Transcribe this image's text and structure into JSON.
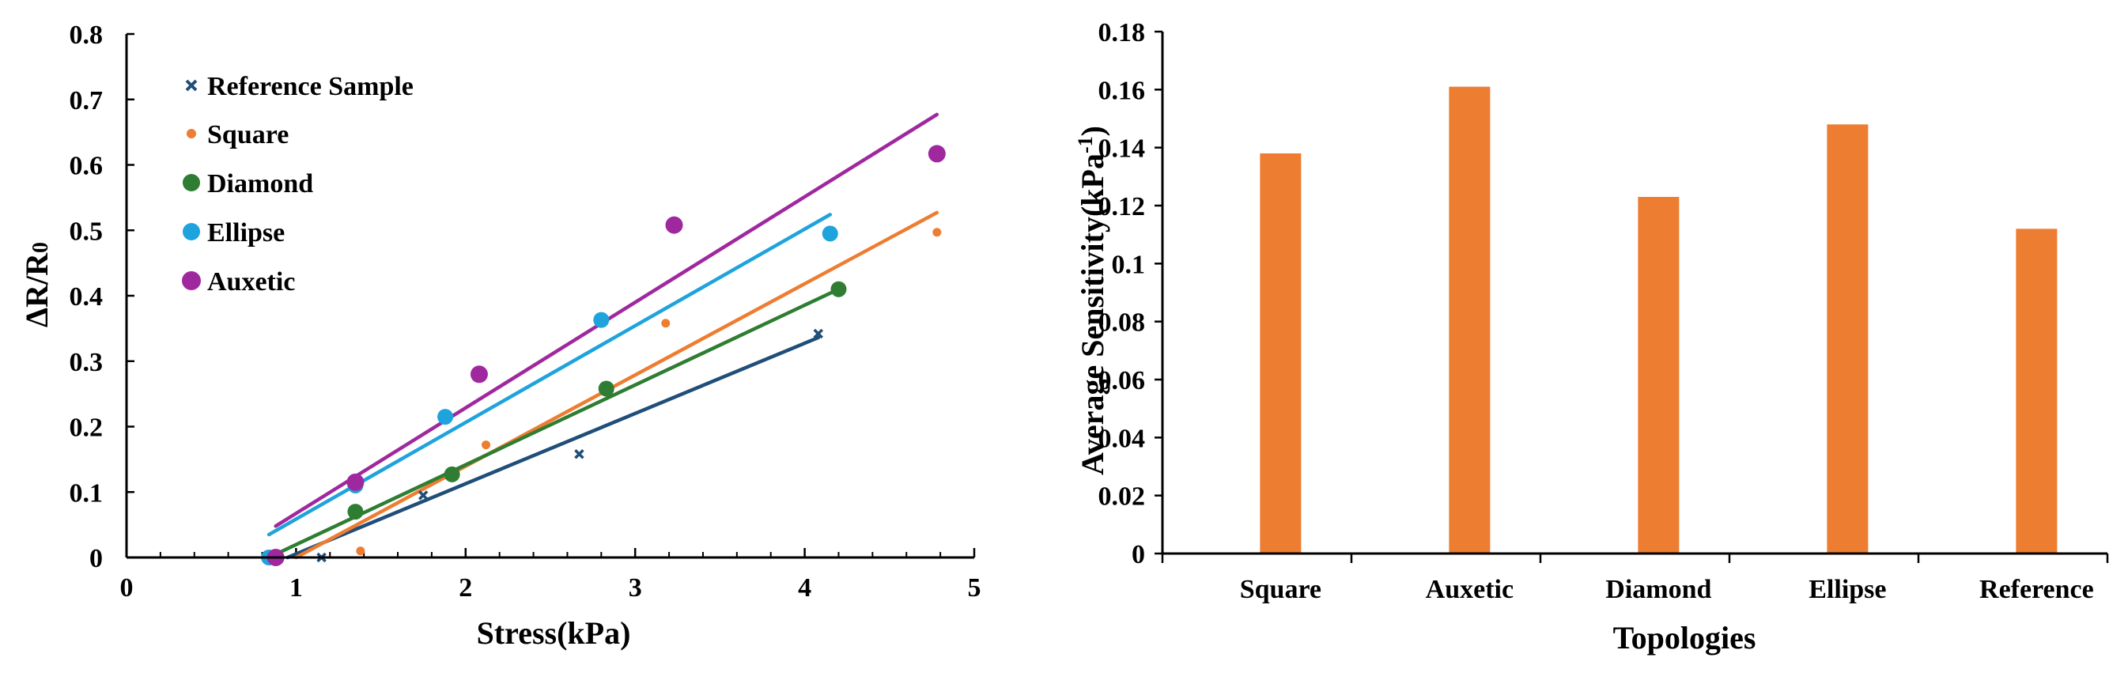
{
  "chart_data": [
    {
      "type": "scatter",
      "xlabel": "Stress(kPa)",
      "ylabel": "ΔR/R",
      "ylabel_subscript": "0",
      "xlim": [
        0,
        5
      ],
      "ylim": [
        0,
        0.8
      ],
      "xticks": [
        "0",
        "1",
        "2",
        "3",
        "4",
        "5"
      ],
      "yticks": [
        "0",
        "0.1",
        "0.2",
        "0.3",
        "0.4",
        "0.5",
        "0.6",
        "0.7",
        "0.8"
      ],
      "legend_position": "top-left",
      "series": [
        {
          "name": "Reference Sample",
          "color": "#1f4e79",
          "marker": "x",
          "points": [
            [
              1.15,
              0.0
            ],
            [
              1.75,
              0.095
            ],
            [
              2.67,
              0.158
            ],
            [
              4.08,
              0.342
            ]
          ],
          "trendline": [
            [
              0.95,
              0.0
            ],
            [
              4.08,
              0.336
            ]
          ]
        },
        {
          "name": "Square",
          "color": "#ed7d31",
          "marker": "small-dot",
          "points": [
            [
              1.38,
              0.01
            ],
            [
              2.12,
              0.172
            ],
            [
              3.18,
              0.358
            ],
            [
              4.78,
              0.497
            ]
          ],
          "trendline": [
            [
              1.0,
              0.0
            ],
            [
              4.78,
              0.527
            ]
          ]
        },
        {
          "name": "Diamond",
          "color": "#2e7d32",
          "marker": "dot",
          "points": [
            [
              1.35,
              0.07
            ],
            [
              1.92,
              0.127
            ],
            [
              2.83,
              0.258
            ],
            [
              4.2,
              0.41
            ]
          ],
          "trendline": [
            [
              0.88,
              0.005
            ],
            [
              4.2,
              0.41
            ]
          ]
        },
        {
          "name": "Ellipse",
          "color": "#1ea3dc",
          "marker": "dot",
          "points": [
            [
              0.84,
              0.0
            ],
            [
              1.35,
              0.11
            ],
            [
              1.88,
              0.215
            ],
            [
              2.8,
              0.363
            ],
            [
              4.15,
              0.495
            ]
          ],
          "trendline": [
            [
              0.84,
              0.035
            ],
            [
              4.15,
              0.524
            ]
          ]
        },
        {
          "name": "Auxetic",
          "color": "#a0289f",
          "marker": "dot",
          "points": [
            [
              0.88,
              0.0
            ],
            [
              1.35,
              0.115
            ],
            [
              2.08,
              0.28
            ],
            [
              3.23,
              0.508
            ],
            [
              4.78,
              0.617
            ]
          ],
          "trendline": [
            [
              0.88,
              0.048
            ],
            [
              4.78,
              0.677
            ]
          ]
        }
      ]
    },
    {
      "type": "bar",
      "xlabel": "Topologies",
      "ylabel": "Average Sensitivity(kPa",
      "ylabel_superscript": "-1",
      "ylabel_end": ")",
      "categories": [
        "Square",
        "Auxetic",
        "Diamond",
        "Ellipse",
        "Reference"
      ],
      "values": [
        0.138,
        0.161,
        0.123,
        0.148,
        0.112
      ],
      "ylim": [
        0,
        0.18
      ],
      "yticks": [
        "0",
        "0.02",
        "0.04",
        "0.06",
        "0.08",
        "0.1",
        "0.12",
        "0.14",
        "0.16",
        "0.18"
      ],
      "bar_color": "#ed7d31"
    }
  ]
}
